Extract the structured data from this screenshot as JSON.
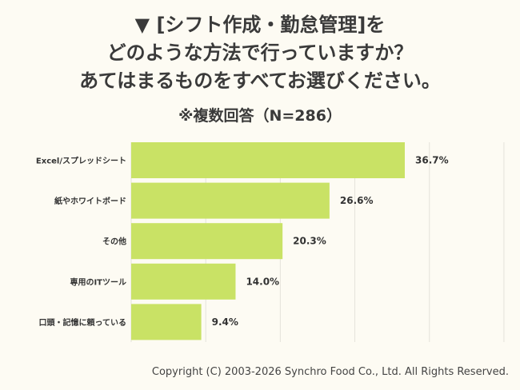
{
  "title_lines": [
    "▼ [シフト作成・勤怠管理]を",
    "どのような方法で行っていますか？",
    "あてはまるものをすべてお選びください。"
  ],
  "subtitle": "※複数回答（N=286）",
  "chart_data": {
    "type": "bar",
    "orientation": "horizontal",
    "categories": [
      "Excel/スプレッドシート",
      "紙やホワイトボード",
      "その他",
      "専用のITツール",
      "口頭・記憶に頼っている"
    ],
    "values": [
      36.7,
      26.6,
      20.3,
      14.0,
      9.4
    ],
    "value_labels": [
      "36.7%",
      "26.6%",
      "20.3%",
      "14.0%",
      "9.4%"
    ],
    "xlim": [
      0,
      50
    ],
    "grid": true,
    "bar_color": "#c9e265"
  },
  "footer": "Copyright (C) 2003-2026  Synchro Food Co., Ltd. All Rights Reserved."
}
